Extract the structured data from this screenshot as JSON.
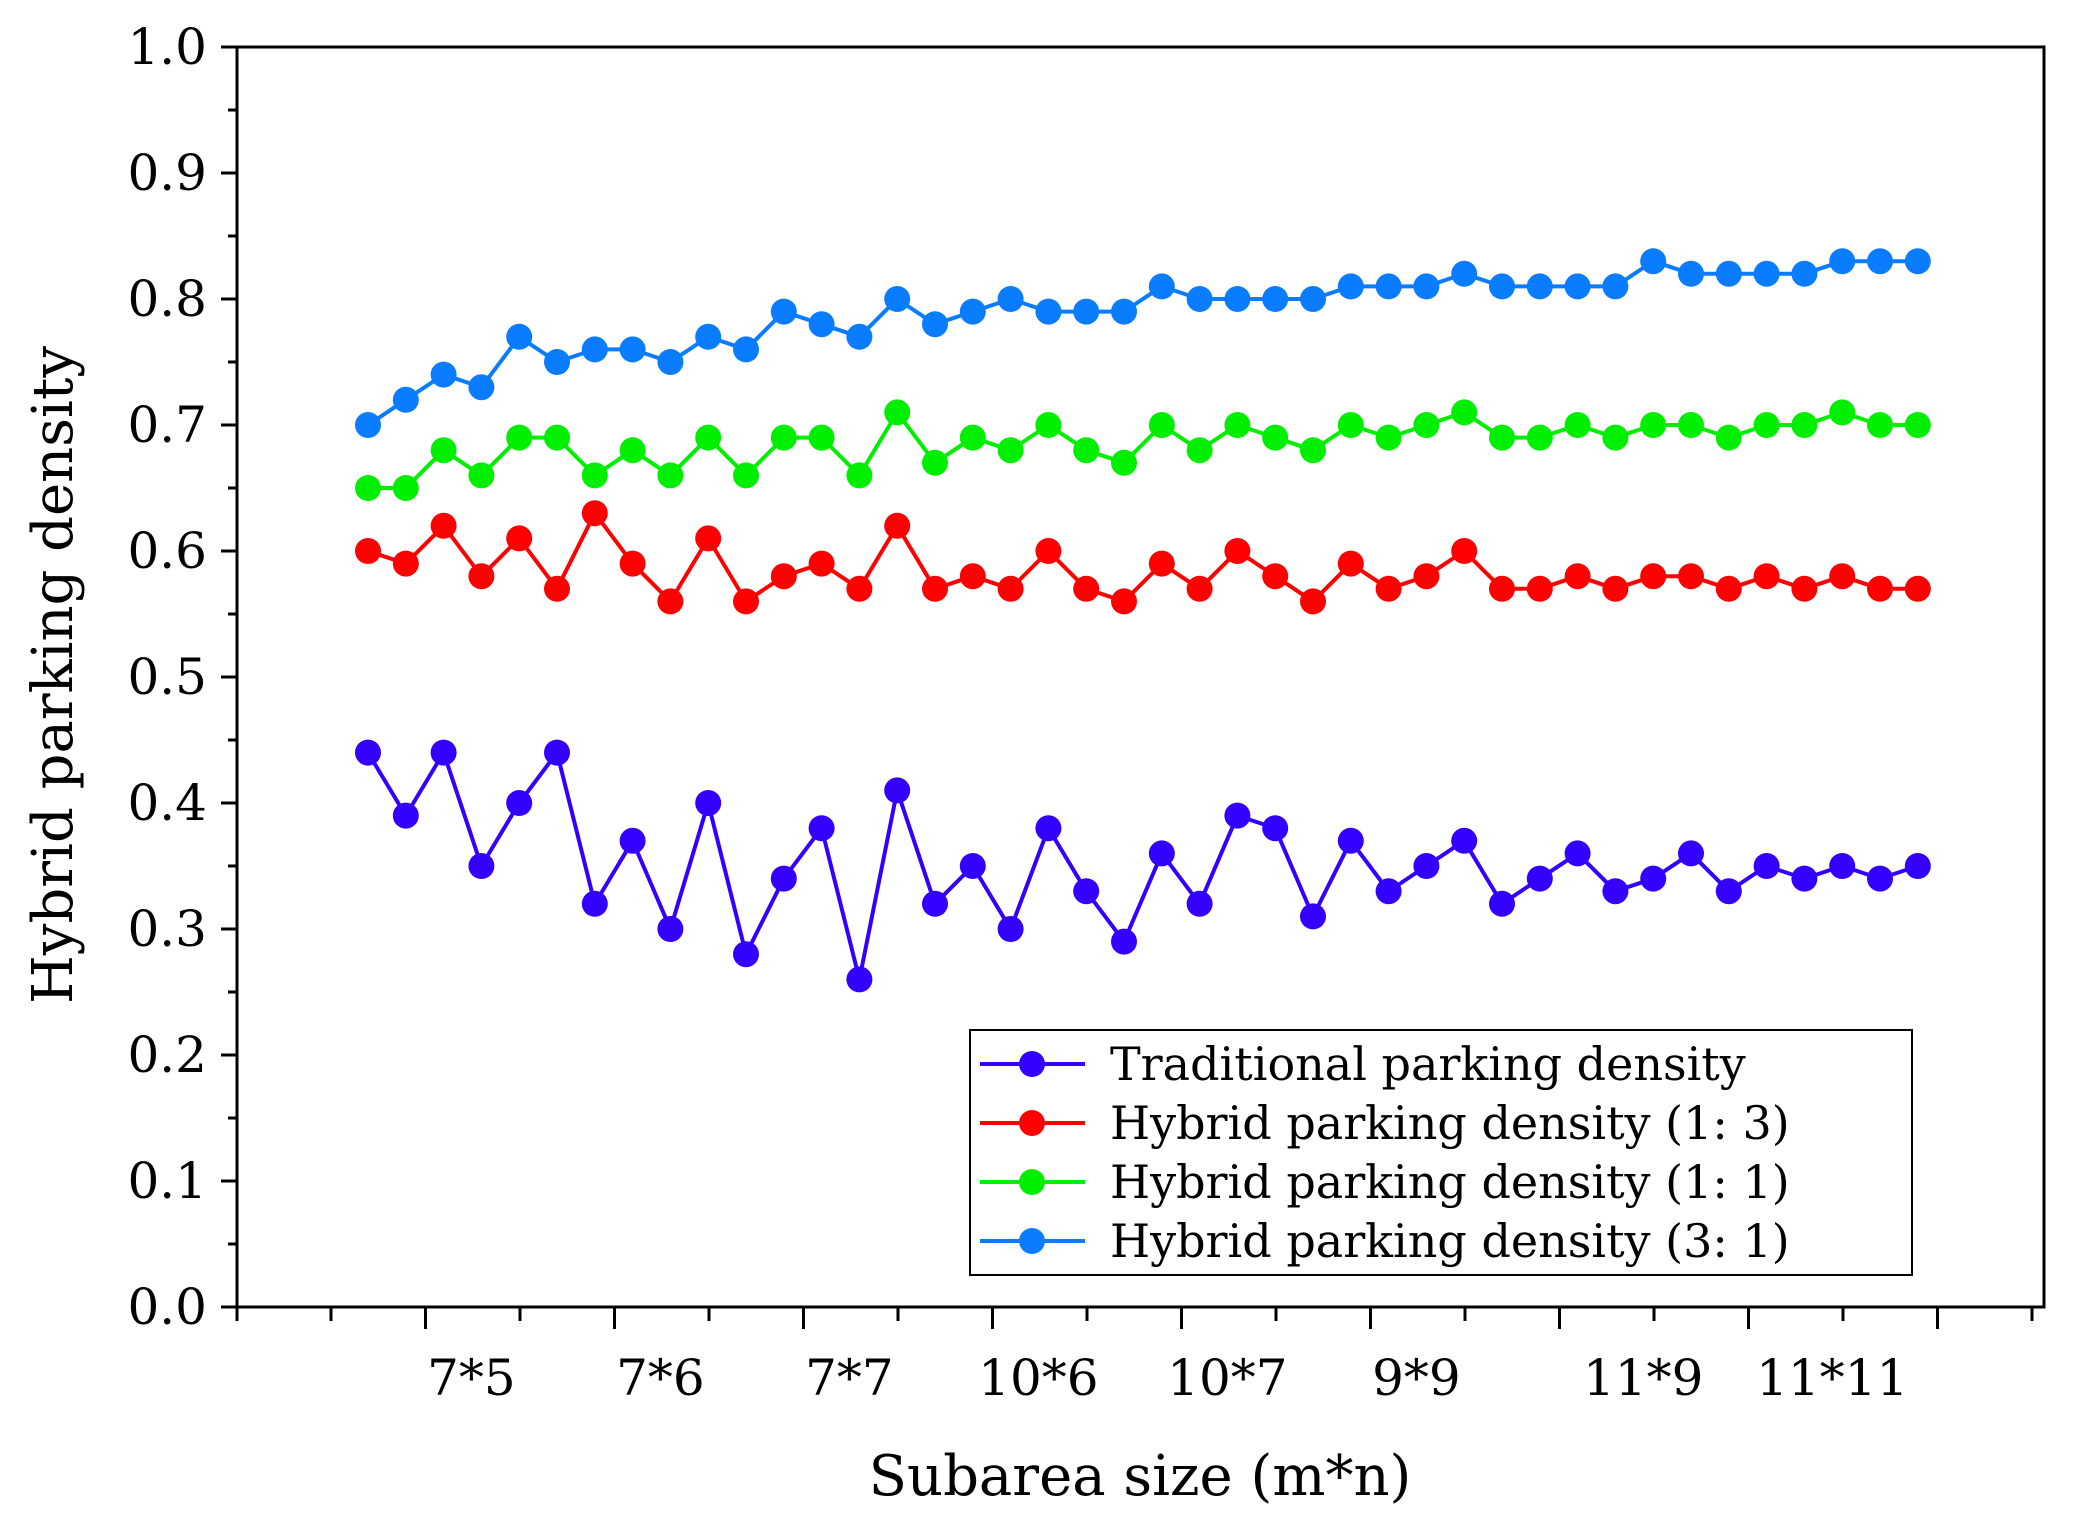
{
  "chart_data": {
    "type": "line",
    "title": "",
    "xlabel": "Subarea size (m*n)",
    "ylabel": "Hybrid parking density",
    "ylim": [
      0.0,
      1.0
    ],
    "yticks": [
      "0.0",
      "0.1",
      "0.2",
      "0.3",
      "0.4",
      "0.5",
      "0.6",
      "0.7",
      "0.8",
      "0.9",
      "1.0"
    ],
    "xtick_labels": [
      "7*5",
      "7*6",
      "7*7",
      "10*6",
      "10*7",
      "9*9",
      "11*9",
      "11*11"
    ],
    "grid": false,
    "legend_position": "bottom-right",
    "series": [
      {
        "name": "Traditional parking density",
        "color": "#3300ff",
        "values": [
          0.44,
          0.39,
          0.44,
          0.35,
          0.4,
          0.44,
          0.32,
          0.37,
          0.3,
          0.4,
          0.28,
          0.34,
          0.38,
          0.26,
          0.41,
          0.32,
          0.35,
          0.3,
          0.38,
          0.33,
          0.29,
          0.36,
          0.32,
          0.39,
          0.38,
          0.31,
          0.37,
          0.33,
          0.35,
          0.37,
          0.32,
          0.34,
          0.36,
          0.33,
          0.34,
          0.36,
          0.33,
          0.35,
          0.34,
          0.35,
          0.34,
          0.35
        ]
      },
      {
        "name": "Hybrid parking density (1: 3)",
        "color": "#ff0000",
        "values": [
          0.6,
          0.59,
          0.62,
          0.58,
          0.61,
          0.57,
          0.63,
          0.59,
          0.56,
          0.61,
          0.56,
          0.58,
          0.59,
          0.57,
          0.62,
          0.57,
          0.58,
          0.57,
          0.6,
          0.57,
          0.56,
          0.59,
          0.57,
          0.6,
          0.58,
          0.56,
          0.59,
          0.57,
          0.58,
          0.6,
          0.57,
          0.57,
          0.58,
          0.57,
          0.58,
          0.58,
          0.57,
          0.58,
          0.57,
          0.58,
          0.57,
          0.57
        ]
      },
      {
        "name": "Hybrid parking density (1: 1)",
        "color": "#00ee00",
        "values": [
          0.65,
          0.65,
          0.68,
          0.66,
          0.69,
          0.69,
          0.66,
          0.68,
          0.66,
          0.69,
          0.66,
          0.69,
          0.69,
          0.66,
          0.71,
          0.67,
          0.69,
          0.68,
          0.7,
          0.68,
          0.67,
          0.7,
          0.68,
          0.7,
          0.69,
          0.68,
          0.7,
          0.69,
          0.7,
          0.71,
          0.69,
          0.69,
          0.7,
          0.69,
          0.7,
          0.7,
          0.69,
          0.7,
          0.7,
          0.71,
          0.7,
          0.7
        ]
      },
      {
        "name": "Hybrid parking density (3: 1)",
        "color": "#0a7cff",
        "values": [
          0.7,
          0.72,
          0.74,
          0.73,
          0.77,
          0.75,
          0.76,
          0.76,
          0.75,
          0.77,
          0.76,
          0.79,
          0.78,
          0.77,
          0.8,
          0.78,
          0.79,
          0.8,
          0.79,
          0.79,
          0.79,
          0.81,
          0.8,
          0.8,
          0.8,
          0.8,
          0.81,
          0.81,
          0.81,
          0.82,
          0.81,
          0.81,
          0.81,
          0.81,
          0.83,
          0.82,
          0.82,
          0.82,
          0.82,
          0.83,
          0.83,
          0.83
        ]
      }
    ]
  }
}
